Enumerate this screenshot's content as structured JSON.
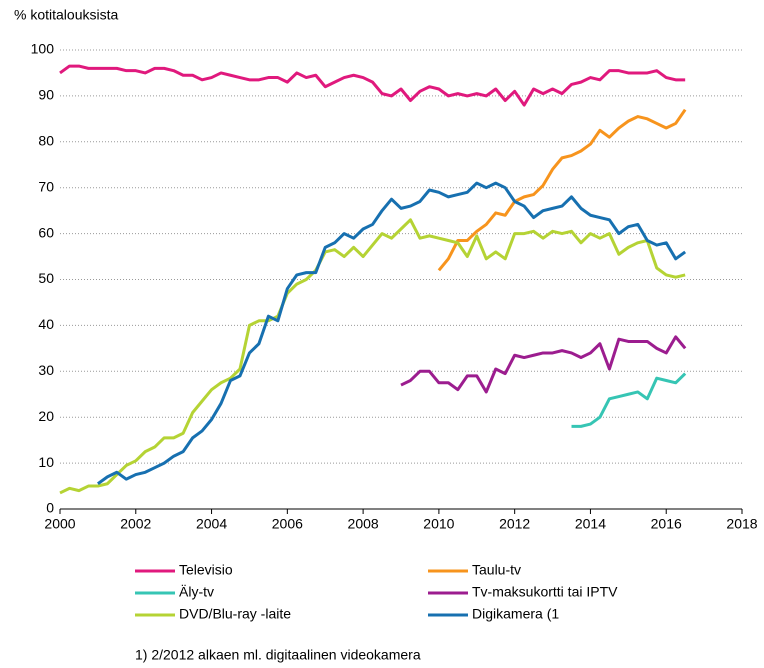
{
  "chart_data": {
    "type": "line",
    "ylabel": "% kotitalouksista",
    "footnote": "1) 2/2012 alkaen ml. digitaalinen videokamera",
    "xlim": [
      2000,
      2018
    ],
    "xticks": [
      2000,
      2002,
      2004,
      2006,
      2008,
      2010,
      2012,
      2014,
      2016,
      2018
    ],
    "ylim": [
      0,
      100
    ],
    "yticks": [
      0,
      10,
      20,
      30,
      40,
      50,
      60,
      70,
      80,
      90,
      100
    ],
    "grid": true,
    "x": [
      2000,
      2000.25,
      2000.5,
      2000.75,
      2001,
      2001.25,
      2001.5,
      2001.75,
      2002,
      2002.25,
      2002.5,
      2002.75,
      2003,
      2003.25,
      2003.5,
      2003.75,
      2004,
      2004.25,
      2004.5,
      2004.75,
      2005,
      2005.25,
      2005.5,
      2005.75,
      2006,
      2006.25,
      2006.5,
      2006.75,
      2007,
      2007.25,
      2007.5,
      2007.75,
      2008,
      2008.25,
      2008.5,
      2008.75,
      2009,
      2009.25,
      2009.5,
      2009.75,
      2010,
      2010.25,
      2010.5,
      2010.75,
      2011,
      2011.25,
      2011.5,
      2011.75,
      2012,
      2012.25,
      2012.5,
      2012.75,
      2013,
      2013.25,
      2013.5,
      2013.75,
      2014,
      2014.25,
      2014.5,
      2014.75,
      2015,
      2015.25,
      2015.5,
      2015.75,
      2016,
      2016.25,
      2016.5
    ],
    "series": [
      {
        "name": "Televisio",
        "color": "#e0197d",
        "values": [
          95,
          96.5,
          96.5,
          96,
          96,
          96,
          96,
          95.5,
          95.5,
          95,
          96,
          96,
          95.5,
          94.5,
          94.5,
          93.5,
          94,
          95,
          94.5,
          94,
          93.5,
          93.5,
          94,
          94,
          93,
          95,
          94,
          94.5,
          92,
          93,
          94,
          94.5,
          94,
          93,
          90.5,
          90,
          91.5,
          89,
          91,
          92,
          91.5,
          90,
          90.5,
          90,
          90.5,
          90,
          91.5,
          89,
          91,
          88,
          91.5,
          90.5,
          91.5,
          90.5,
          92.5,
          93,
          94,
          93.5,
          95.5,
          95.5,
          95,
          95,
          95,
          95.5,
          94,
          93.5,
          93.5
        ]
      },
      {
        "name": "Taulu-tv",
        "color": "#f7941d",
        "values": [
          null,
          null,
          null,
          null,
          null,
          null,
          null,
          null,
          null,
          null,
          null,
          null,
          null,
          null,
          null,
          null,
          null,
          null,
          null,
          null,
          null,
          null,
          null,
          null,
          null,
          null,
          null,
          null,
          null,
          null,
          null,
          null,
          null,
          null,
          null,
          null,
          null,
          null,
          null,
          null,
          52,
          54.5,
          58.5,
          58.5,
          60.5,
          62,
          64.5,
          64,
          67,
          68,
          68.5,
          70.5,
          74,
          76.5,
          77,
          78,
          79.5,
          82.5,
          81,
          83,
          84.5,
          85.5,
          85,
          84,
          83,
          84,
          87
        ]
      },
      {
        "name": "Äly-tv",
        "color": "#36c5b4",
        "values": [
          null,
          null,
          null,
          null,
          null,
          null,
          null,
          null,
          null,
          null,
          null,
          null,
          null,
          null,
          null,
          null,
          null,
          null,
          null,
          null,
          null,
          null,
          null,
          null,
          null,
          null,
          null,
          null,
          null,
          null,
          null,
          null,
          null,
          null,
          null,
          null,
          null,
          null,
          null,
          null,
          null,
          null,
          null,
          null,
          null,
          null,
          null,
          null,
          null,
          null,
          null,
          null,
          null,
          null,
          18,
          18,
          18.5,
          20,
          24,
          24.5,
          25,
          25.5,
          24,
          28.5,
          28,
          27.5,
          29.5
        ]
      },
      {
        "name": "Tv-maksukortti tai IPTV",
        "color": "#9c1d8f",
        "values": [
          null,
          null,
          null,
          null,
          null,
          null,
          null,
          null,
          null,
          null,
          null,
          null,
          null,
          null,
          null,
          null,
          null,
          null,
          null,
          null,
          null,
          null,
          null,
          null,
          null,
          null,
          null,
          null,
          null,
          null,
          null,
          null,
          null,
          null,
          null,
          null,
          27,
          28,
          30,
          30,
          27.5,
          27.5,
          26,
          29,
          29,
          25.5,
          30.5,
          29.5,
          33.5,
          33,
          33.5,
          34,
          34,
          34.5,
          34,
          33,
          34,
          36,
          30.5,
          37,
          36.5,
          36.5,
          36.5,
          35,
          34,
          37.5,
          35
        ]
      },
      {
        "name": "DVD/Blu-ray -laite",
        "color": "#b5d334",
        "values": [
          3.5,
          4.5,
          4,
          5,
          5,
          5.5,
          7.5,
          9.5,
          10.5,
          12.5,
          13.5,
          15.5,
          15.5,
          16.5,
          21,
          23.5,
          26,
          27.5,
          28.5,
          30.5,
          40,
          41,
          41,
          42,
          47,
          49,
          50,
          52,
          56,
          56.5,
          55,
          57,
          55,
          57.5,
          60,
          59,
          61,
          63,
          59,
          59.5,
          59,
          58.5,
          58,
          55,
          59.5,
          54.5,
          56,
          54.5,
          60,
          60,
          60.5,
          59,
          60.5,
          60,
          60.5,
          58,
          60,
          59,
          60,
          55.5,
          57,
          58,
          58.5,
          52.5,
          51,
          50.5,
          51
        ]
      },
      {
        "name": "Digikamera (1",
        "color": "#1770b0",
        "values": [
          null,
          null,
          null,
          null,
          5.5,
          7,
          8,
          6.5,
          7.5,
          8,
          9,
          10,
          11.5,
          12.5,
          15.5,
          17,
          19.5,
          23,
          28,
          29,
          34,
          36,
          42,
          41,
          48,
          51,
          51.5,
          51.5,
          57,
          58,
          60,
          59,
          61,
          62,
          65,
          67.5,
          65.5,
          66,
          67,
          69.5,
          69,
          68,
          68.5,
          69,
          71,
          70,
          71,
          70,
          67,
          66,
          63.5,
          65,
          65.5,
          66,
          68,
          65.5,
          64,
          63.5,
          63,
          60,
          61.5,
          62,
          58.5,
          57.5,
          58,
          54.5,
          56
        ]
      }
    ]
  }
}
